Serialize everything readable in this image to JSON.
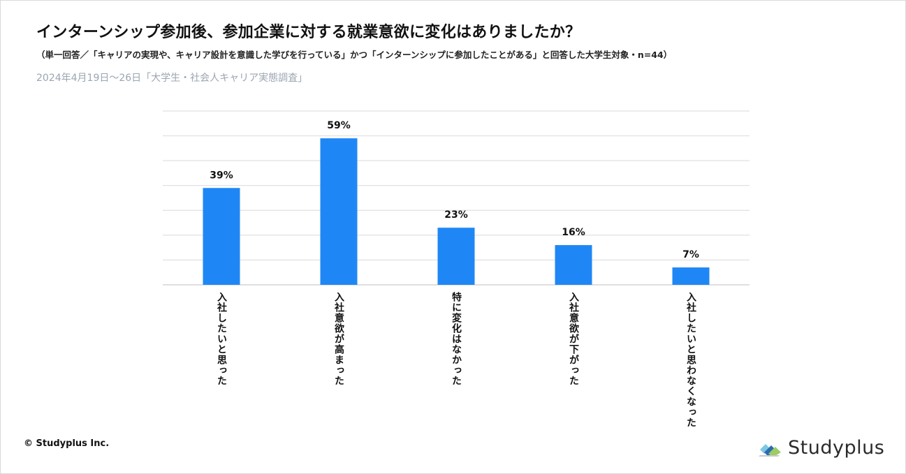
{
  "header": {
    "title": "インターンシップ参加後、参加企業に対する就業意欲に変化はありましたか？",
    "subtitle": "（単一回答／「キャリアの実現や、キャリア設計を意識した学びを行っている」かつ「インターンシップに参加したことがある」と回答した大学生対象・n=44）",
    "source": "2024年4月19日〜26日「大学生・社会人キャリア実態調査」"
  },
  "footer": {
    "copyright": "© Studyplus Inc.",
    "logo_text": "Studyplus"
  },
  "colors": {
    "bar": "#1f87f5",
    "grid": "#d9d9d9",
    "axis": "#bfbfbf"
  },
  "chart_data": {
    "type": "bar",
    "title": "インターンシップ参加後、参加企業に対する就業意欲に変化はありましたか？",
    "xlabel": "",
    "ylabel": "",
    "ylim": [
      0,
      70
    ],
    "grid": true,
    "categories": [
      "入社したいと思った",
      "入社意欲が高まった",
      "特に変化はなかった",
      "入社意欲が下がった",
      "入社したいと思わなくなった"
    ],
    "values": [
      39,
      59,
      23,
      16,
      7
    ],
    "value_labels": [
      "39%",
      "59%",
      "23%",
      "16%",
      "7%"
    ]
  }
}
